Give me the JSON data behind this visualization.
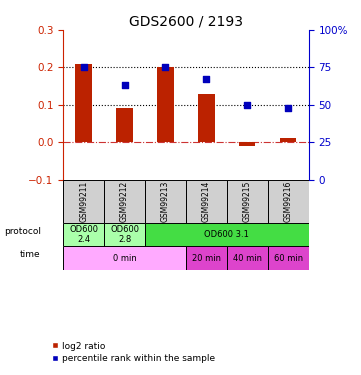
{
  "title": "GDS2600 / 2193",
  "samples": [
    "GSM99211",
    "GSM99212",
    "GSM99213",
    "GSM99214",
    "GSM99215",
    "GSM99216"
  ],
  "log2_ratio": [
    0.21,
    0.09,
    0.2,
    0.13,
    -0.01,
    0.01
  ],
  "percentile_rank": [
    75,
    63,
    75,
    67,
    50,
    48
  ],
  "ylim_left": [
    -0.1,
    0.3
  ],
  "ylim_right": [
    0,
    100
  ],
  "yticks_left": [
    -0.1,
    0.0,
    0.1,
    0.2,
    0.3
  ],
  "yticks_right": [
    0,
    25,
    50,
    75,
    100
  ],
  "hlines": [
    0.1,
    0.2
  ],
  "bar_color": "#bb2200",
  "dot_color": "#0000bb",
  "zero_line_color": "#cc3333",
  "protocol_labels": [
    {
      "text": "OD600\n2.4",
      "start": 0,
      "end": 1,
      "color": "#aaffaa"
    },
    {
      "text": "OD600\n2.8",
      "start": 1,
      "end": 2,
      "color": "#aaffaa"
    },
    {
      "text": "OD600 3.1",
      "start": 2,
      "end": 6,
      "color": "#44dd44"
    }
  ],
  "time_labels": [
    {
      "text": "0 min",
      "start": 0,
      "end": 3,
      "color": "#ffaaff"
    },
    {
      "text": "20 min",
      "start": 3,
      "end": 4,
      "color": "#dd44cc"
    },
    {
      "text": "40 min",
      "start": 4,
      "end": 5,
      "color": "#dd44cc"
    },
    {
      "text": "60 min",
      "start": 5,
      "end": 6,
      "color": "#dd44cc"
    }
  ],
  "sample_bg_color": "#d0d0d0",
  "left_axis_color": "#cc2200",
  "right_axis_color": "#0000cc",
  "legend_label1": "log2 ratio",
  "legend_label2": "percentile rank within the sample"
}
